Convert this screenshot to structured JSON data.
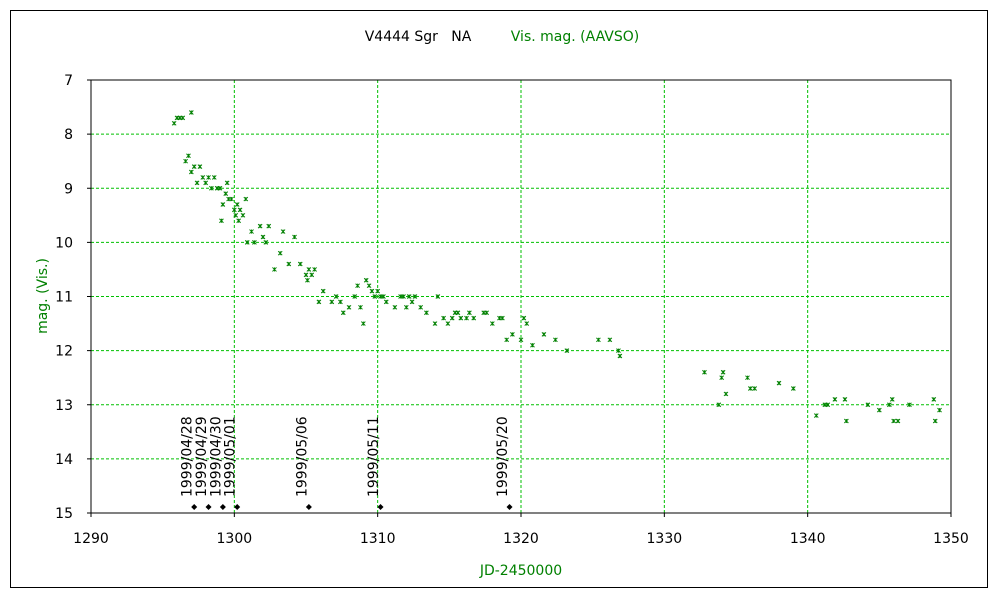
{
  "chart_data": {
    "type": "scatter",
    "title": "V4444 Sgr   NA",
    "series_title": "Vis. mag. (AAVSO)",
    "xlabel": "JD-2450000",
    "ylabel": "mag. (Vis.)",
    "xlim": [
      1290,
      1350
    ],
    "ylim": [
      15,
      7
    ],
    "x_ticks": [
      "1290",
      "1300",
      "1310",
      "1320",
      "1330",
      "1340",
      "1350"
    ],
    "y_ticks": [
      "7",
      "8",
      "9",
      "10",
      "11",
      "12",
      "13",
      "14",
      "15"
    ],
    "grid": true,
    "colors": {
      "series": "#008000",
      "grid": "#00c000",
      "axis": "#000000",
      "text": "#000000"
    },
    "annotations": [
      {
        "label": "1999/04/28",
        "jd": 1297.2
      },
      {
        "label": "1999/04/29",
        "jd": 1298.2
      },
      {
        "label": "1999/04/30",
        "jd": 1299.2
      },
      {
        "label": "1999/05/01",
        "jd": 1300.2
      },
      {
        "label": "1999/05/06",
        "jd": 1305.2
      },
      {
        "label": "1999/05/11",
        "jd": 1310.2
      },
      {
        "label": "1999/05/20",
        "jd": 1319.2
      }
    ],
    "points": [
      [
        1295.8,
        7.8
      ],
      [
        1296.0,
        7.7
      ],
      [
        1296.2,
        7.7
      ],
      [
        1296.4,
        7.7
      ],
      [
        1297.0,
        7.6
      ],
      [
        1296.6,
        8.5
      ],
      [
        1296.8,
        8.4
      ],
      [
        1297.0,
        8.7
      ],
      [
        1297.2,
        8.6
      ],
      [
        1297.4,
        8.9
      ],
      [
        1297.6,
        8.6
      ],
      [
        1297.8,
        8.8
      ],
      [
        1298.0,
        8.9
      ],
      [
        1298.2,
        8.8
      ],
      [
        1298.4,
        9.0
      ],
      [
        1298.6,
        8.8
      ],
      [
        1298.8,
        9.0
      ],
      [
        1299.0,
        9.0
      ],
      [
        1299.1,
        9.6
      ],
      [
        1299.2,
        9.3
      ],
      [
        1299.4,
        9.1
      ],
      [
        1299.5,
        8.9
      ],
      [
        1299.6,
        9.2
      ],
      [
        1299.8,
        9.2
      ],
      [
        1300.0,
        9.4
      ],
      [
        1300.1,
        9.5
      ],
      [
        1300.2,
        9.3
      ],
      [
        1300.3,
        9.6
      ],
      [
        1300.4,
        9.4
      ],
      [
        1300.6,
        9.5
      ],
      [
        1300.8,
        9.2
      ],
      [
        1300.9,
        10.0
      ],
      [
        1301.2,
        9.8
      ],
      [
        1301.4,
        10.0
      ],
      [
        1301.8,
        9.7
      ],
      [
        1302.0,
        9.9
      ],
      [
        1302.2,
        10.0
      ],
      [
        1302.4,
        9.7
      ],
      [
        1302.8,
        10.5
      ],
      [
        1303.2,
        10.2
      ],
      [
        1303.4,
        9.8
      ],
      [
        1303.8,
        10.4
      ],
      [
        1304.2,
        9.9
      ],
      [
        1304.6,
        10.4
      ],
      [
        1305.0,
        10.6
      ],
      [
        1305.1,
        10.7
      ],
      [
        1305.2,
        10.5
      ],
      [
        1305.4,
        10.6
      ],
      [
        1305.6,
        10.5
      ],
      [
        1305.9,
        11.1
      ],
      [
        1306.2,
        10.9
      ],
      [
        1306.8,
        11.1
      ],
      [
        1307.1,
        11.0
      ],
      [
        1307.4,
        11.1
      ],
      [
        1307.6,
        11.3
      ],
      [
        1308.0,
        11.2
      ],
      [
        1308.4,
        11.0
      ],
      [
        1308.6,
        10.8
      ],
      [
        1308.8,
        11.2
      ],
      [
        1309.0,
        11.5
      ],
      [
        1309.2,
        10.7
      ],
      [
        1309.4,
        10.8
      ],
      [
        1309.6,
        10.9
      ],
      [
        1309.8,
        11.0
      ],
      [
        1310.0,
        10.9
      ],
      [
        1310.2,
        11.0
      ],
      [
        1310.4,
        11.0
      ],
      [
        1310.6,
        11.1
      ],
      [
        1311.2,
        11.2
      ],
      [
        1311.6,
        11.0
      ],
      [
        1311.8,
        11.0
      ],
      [
        1312.0,
        11.2
      ],
      [
        1312.2,
        11.0
      ],
      [
        1312.4,
        11.1
      ],
      [
        1312.6,
        11.0
      ],
      [
        1313.0,
        11.2
      ],
      [
        1313.4,
        11.3
      ],
      [
        1314.0,
        11.5
      ],
      [
        1314.2,
        11.0
      ],
      [
        1314.6,
        11.4
      ],
      [
        1314.9,
        11.5
      ],
      [
        1315.2,
        11.4
      ],
      [
        1315.4,
        11.3
      ],
      [
        1315.6,
        11.3
      ],
      [
        1315.8,
        11.4
      ],
      [
        1316.2,
        11.4
      ],
      [
        1316.4,
        11.3
      ],
      [
        1316.7,
        11.4
      ],
      [
        1317.4,
        11.3
      ],
      [
        1317.6,
        11.3
      ],
      [
        1318.0,
        11.5
      ],
      [
        1318.5,
        11.4
      ],
      [
        1318.7,
        11.4
      ],
      [
        1319.0,
        11.8
      ],
      [
        1319.4,
        11.7
      ],
      [
        1320.0,
        11.8
      ],
      [
        1320.2,
        11.4
      ],
      [
        1320.4,
        11.5
      ],
      [
        1320.8,
        11.9
      ],
      [
        1321.6,
        11.7
      ],
      [
        1322.4,
        11.8
      ],
      [
        1323.2,
        12.0
      ],
      [
        1325.4,
        11.8
      ],
      [
        1326.2,
        11.8
      ],
      [
        1326.8,
        12.0
      ],
      [
        1326.9,
        12.1
      ],
      [
        1332.8,
        12.4
      ],
      [
        1333.8,
        13.0
      ],
      [
        1334.0,
        12.5
      ],
      [
        1334.1,
        12.4
      ],
      [
        1334.3,
        12.8
      ],
      [
        1335.8,
        12.5
      ],
      [
        1336.0,
        12.7
      ],
      [
        1336.3,
        12.7
      ],
      [
        1338.0,
        12.6
      ],
      [
        1339.0,
        12.7
      ],
      [
        1340.6,
        13.2
      ],
      [
        1341.2,
        13.0
      ],
      [
        1341.4,
        13.0
      ],
      [
        1341.9,
        12.9
      ],
      [
        1342.6,
        12.9
      ],
      [
        1342.7,
        13.3
      ],
      [
        1344.2,
        13.0
      ],
      [
        1345.0,
        13.1
      ],
      [
        1345.7,
        13.0
      ],
      [
        1345.9,
        12.9
      ],
      [
        1346.0,
        13.3
      ],
      [
        1346.3,
        13.3
      ],
      [
        1347.1,
        13.0
      ],
      [
        1348.8,
        12.9
      ],
      [
        1348.9,
        13.3
      ],
      [
        1349.2,
        13.1
      ]
    ]
  }
}
